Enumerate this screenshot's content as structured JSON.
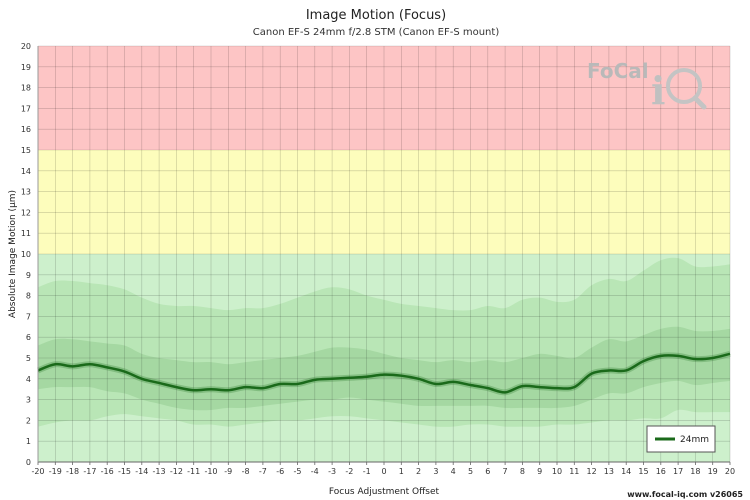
{
  "page": {
    "footer": "www.focal-iq.com  v26065"
  },
  "chart_data": {
    "type": "line",
    "title": "Image Motion (Focus)",
    "subtitle": "Canon EF-S 24mm f/2.8 STM (Canon EF-S mount)",
    "xlabel": "Focus Adjustment Offset",
    "ylabel": "Absolute Image Motion (µm)",
    "xlim": [
      -20,
      20
    ],
    "ylim": [
      0,
      20
    ],
    "x_ticks": [
      -20,
      -19,
      -18,
      -17,
      -16,
      -15,
      -14,
      -13,
      -12,
      -11,
      -10,
      -9,
      -8,
      -7,
      -6,
      -5,
      -4,
      -3,
      -2,
      -1,
      0,
      1,
      2,
      3,
      4,
      5,
      6,
      7,
      8,
      9,
      10,
      11,
      12,
      13,
      14,
      15,
      16,
      17,
      18,
      19,
      20
    ],
    "y_ticks": [
      0,
      1,
      2,
      3,
      4,
      5,
      6,
      7,
      8,
      9,
      10,
      11,
      12,
      13,
      14,
      15,
      16,
      17,
      18,
      19,
      20
    ],
    "grid": true,
    "legend_position": "bottom-right",
    "zones": [
      {
        "from": 0,
        "to": 10,
        "color": "#cdf0cc"
      },
      {
        "from": 10,
        "to": 15,
        "color": "#fdfdbc"
      },
      {
        "from": 15,
        "to": 20,
        "color": "#fdc5c5"
      }
    ],
    "x": [
      -20,
      -19,
      -18,
      -17,
      -16,
      -15,
      -14,
      -13,
      -12,
      -11,
      -10,
      -9,
      -8,
      -7,
      -6,
      -5,
      -4,
      -3,
      -2,
      -1,
      0,
      1,
      2,
      3,
      4,
      5,
      6,
      7,
      8,
      9,
      10,
      11,
      12,
      13,
      14,
      15,
      16,
      17,
      18,
      19,
      20
    ],
    "band_outer_upper": [
      8.4,
      8.7,
      8.7,
      8.6,
      8.5,
      8.3,
      7.9,
      7.6,
      7.5,
      7.5,
      7.4,
      7.3,
      7.4,
      7.4,
      7.6,
      7.9,
      8.2,
      8.4,
      8.3,
      8.0,
      7.8,
      7.6,
      7.5,
      7.4,
      7.3,
      7.3,
      7.5,
      7.4,
      7.8,
      7.9,
      7.7,
      7.8,
      8.5,
      8.8,
      8.7,
      9.2,
      9.7,
      9.8,
      9.4,
      9.4,
      9.5
    ],
    "band_outer_lower": [
      1.7,
      1.9,
      2.0,
      2.0,
      2.2,
      2.3,
      2.2,
      2.1,
      2.0,
      1.8,
      1.8,
      1.7,
      1.8,
      1.9,
      2.0,
      2.0,
      2.1,
      2.2,
      2.2,
      2.1,
      2.0,
      1.9,
      1.8,
      1.7,
      1.7,
      1.8,
      1.8,
      1.7,
      1.7,
      1.7,
      1.8,
      1.8,
      1.9,
      2.0,
      2.0,
      2.1,
      2.1,
      2.5,
      2.4,
      2.4,
      2.4
    ],
    "band_inner_upper": [
      5.6,
      5.9,
      5.9,
      5.8,
      5.7,
      5.6,
      5.2,
      5.0,
      4.9,
      4.8,
      4.8,
      4.7,
      4.8,
      4.9,
      5.0,
      5.1,
      5.3,
      5.5,
      5.5,
      5.4,
      5.2,
      5.0,
      4.9,
      4.8,
      4.9,
      4.8,
      4.9,
      4.8,
      5.0,
      5.2,
      5.1,
      5.0,
      5.5,
      5.9,
      5.8,
      6.1,
      6.4,
      6.5,
      6.3,
      6.3,
      6.4
    ],
    "band_inner_lower": [
      3.5,
      3.6,
      3.6,
      3.6,
      3.4,
      3.3,
      3.0,
      2.8,
      2.6,
      2.5,
      2.5,
      2.6,
      2.6,
      2.7,
      2.8,
      2.9,
      3.0,
      3.0,
      3.1,
      3.0,
      2.9,
      2.8,
      2.7,
      2.7,
      2.7,
      2.7,
      2.7,
      2.6,
      2.6,
      2.6,
      2.6,
      2.7,
      3.0,
      3.3,
      3.3,
      3.6,
      3.8,
      3.9,
      3.7,
      3.8,
      3.9
    ],
    "series": [
      {
        "name": "24mm",
        "color": "#1a6a1a",
        "values": [
          4.4,
          4.7,
          4.6,
          4.7,
          4.55,
          4.35,
          4.0,
          3.8,
          3.6,
          3.45,
          3.5,
          3.45,
          3.6,
          3.55,
          3.75,
          3.75,
          3.95,
          4.0,
          4.05,
          4.1,
          4.2,
          4.15,
          4.0,
          3.75,
          3.85,
          3.7,
          3.55,
          3.35,
          3.65,
          3.6,
          3.55,
          3.6,
          4.25,
          4.4,
          4.4,
          4.85,
          5.1,
          5.1,
          4.95,
          5.0,
          5.2
        ]
      }
    ],
    "legend": [
      "24mm"
    ]
  }
}
